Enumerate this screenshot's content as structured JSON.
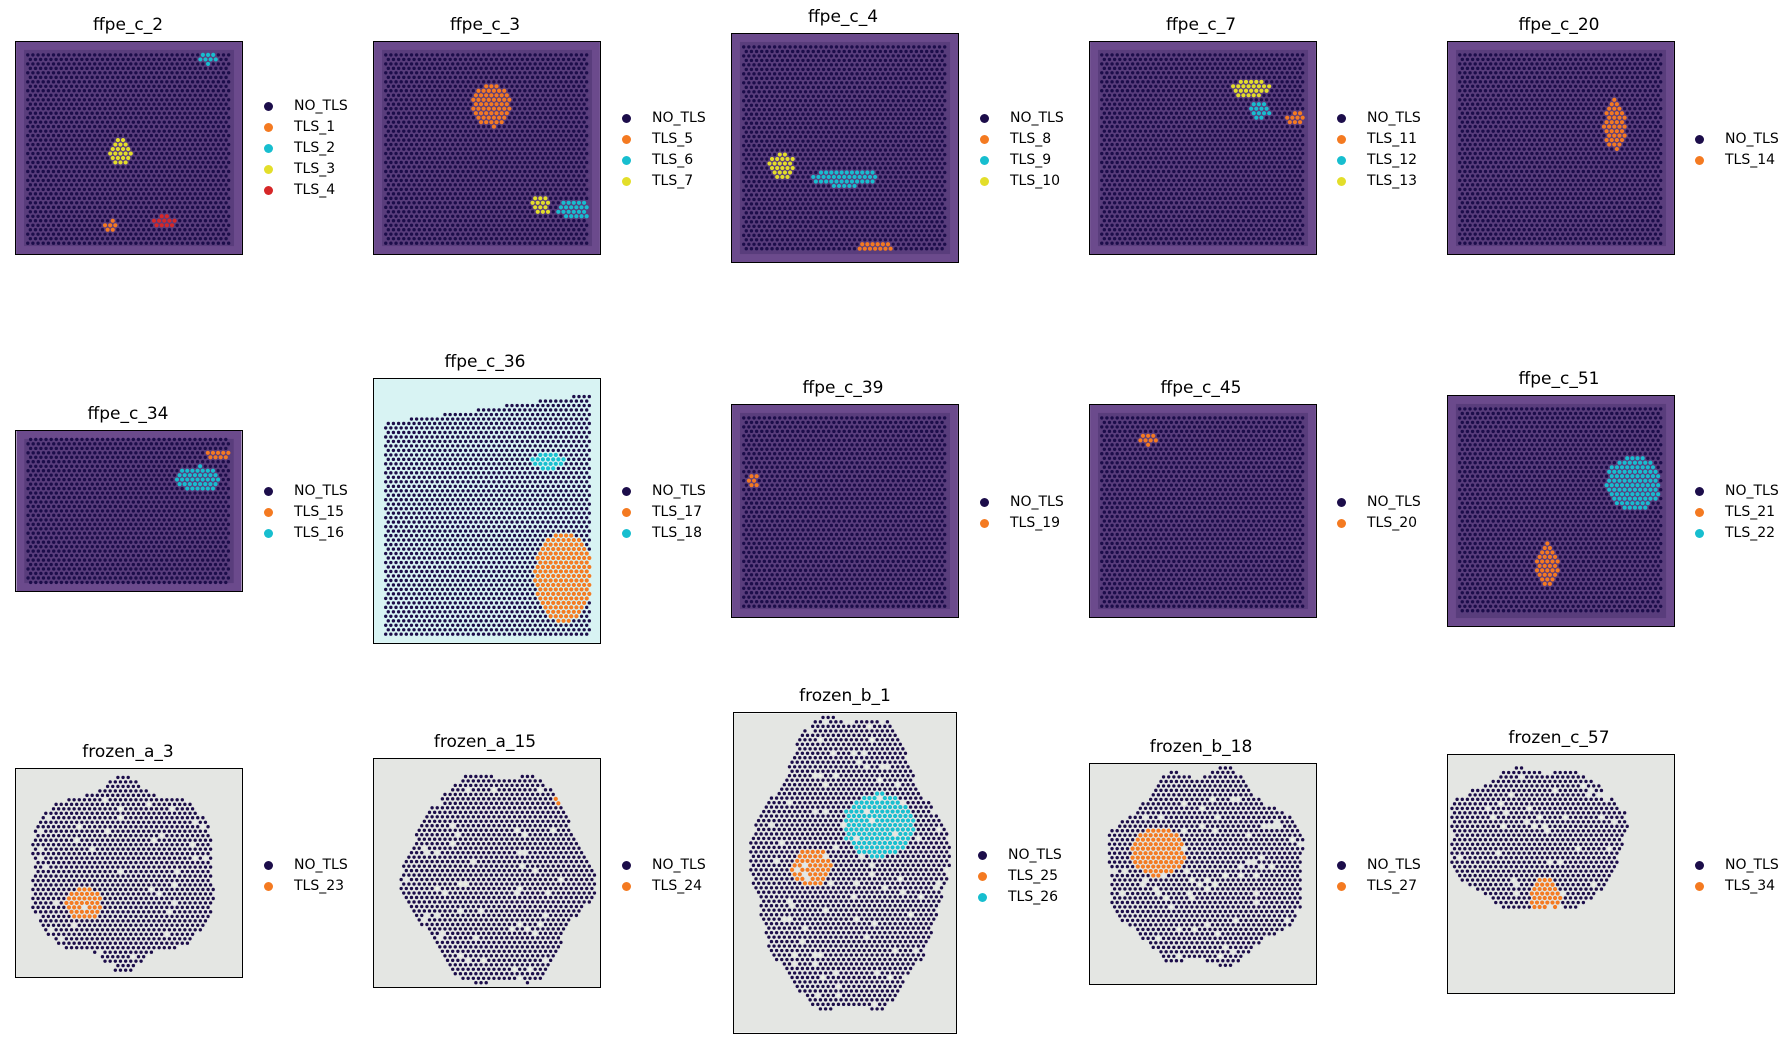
{
  "palette": {
    "NO_TLS": "#1c0d4a",
    "TLS_orange": "#f47a21",
    "TLS_cyan": "#17becf",
    "TLS_yellow": "#e3de2a",
    "TLS_red": "#d62728",
    "tissue_ffpe": "#6b4a8c",
    "tissue_frozen_bg": "#e4e6e3"
  },
  "panels": [
    {
      "title": "ffpe_c_2",
      "type": "ffpe",
      "legend": [
        {
          "label": "NO_TLS",
          "color": "#1c0d4a"
        },
        {
          "label": "TLS_1",
          "color": "#f47a21"
        },
        {
          "label": "TLS_2",
          "color": "#17becf"
        },
        {
          "label": "TLS_3",
          "color": "#e3de2a"
        },
        {
          "label": "TLS_4",
          "color": "#d62728"
        }
      ]
    },
    {
      "title": "ffpe_c_3",
      "type": "ffpe",
      "legend": [
        {
          "label": "NO_TLS",
          "color": "#1c0d4a"
        },
        {
          "label": "TLS_5",
          "color": "#f47a21"
        },
        {
          "label": "TLS_6",
          "color": "#17becf"
        },
        {
          "label": "TLS_7",
          "color": "#e3de2a"
        }
      ]
    },
    {
      "title": "ffpe_c_4",
      "type": "ffpe",
      "legend": [
        {
          "label": "NO_TLS",
          "color": "#1c0d4a"
        },
        {
          "label": "TLS_8",
          "color": "#f47a21"
        },
        {
          "label": "TLS_9",
          "color": "#17becf"
        },
        {
          "label": "TLS_10",
          "color": "#e3de2a"
        }
      ]
    },
    {
      "title": "ffpe_c_7",
      "type": "ffpe",
      "legend": [
        {
          "label": "NO_TLS",
          "color": "#1c0d4a"
        },
        {
          "label": "TLS_11",
          "color": "#f47a21"
        },
        {
          "label": "TLS_12",
          "color": "#17becf"
        },
        {
          "label": "TLS_13",
          "color": "#e3de2a"
        }
      ]
    },
    {
      "title": "ffpe_c_20",
      "type": "ffpe",
      "legend": [
        {
          "label": "NO_TLS",
          "color": "#1c0d4a"
        },
        {
          "label": "TLS_14",
          "color": "#f47a21"
        }
      ]
    },
    {
      "title": "ffpe_c_34",
      "type": "ffpe",
      "legend": [
        {
          "label": "NO_TLS",
          "color": "#1c0d4a"
        },
        {
          "label": "TLS_15",
          "color": "#f47a21"
        },
        {
          "label": "TLS_16",
          "color": "#17becf"
        }
      ]
    },
    {
      "title": "ffpe_c_36",
      "type": "ffpe36",
      "legend": [
        {
          "label": "NO_TLS",
          "color": "#1c0d4a"
        },
        {
          "label": "TLS_17",
          "color": "#f47a21"
        },
        {
          "label": "TLS_18",
          "color": "#17becf"
        }
      ]
    },
    {
      "title": "ffpe_c_39",
      "type": "ffpe",
      "legend": [
        {
          "label": "NO_TLS",
          "color": "#1c0d4a"
        },
        {
          "label": "TLS_19",
          "color": "#f47a21"
        }
      ]
    },
    {
      "title": "ffpe_c_45",
      "type": "ffpe",
      "legend": [
        {
          "label": "NO_TLS",
          "color": "#1c0d4a"
        },
        {
          "label": "TLS_20",
          "color": "#f47a21"
        }
      ]
    },
    {
      "title": "ffpe_c_51",
      "type": "ffpe",
      "legend": [
        {
          "label": "NO_TLS",
          "color": "#1c0d4a"
        },
        {
          "label": "TLS_21",
          "color": "#f47a21"
        },
        {
          "label": "TLS_22",
          "color": "#17becf"
        }
      ]
    },
    {
      "title": "frozen_a_3",
      "type": "frozen",
      "legend": [
        {
          "label": "NO_TLS",
          "color": "#1c0d4a"
        },
        {
          "label": "TLS_23",
          "color": "#f47a21"
        }
      ]
    },
    {
      "title": "frozen_a_15",
      "type": "frozen",
      "legend": [
        {
          "label": "NO_TLS",
          "color": "#1c0d4a"
        },
        {
          "label": "TLS_24",
          "color": "#f47a21"
        }
      ]
    },
    {
      "title": "frozen_b_1",
      "type": "frozen",
      "legend": [
        {
          "label": "NO_TLS",
          "color": "#1c0d4a"
        },
        {
          "label": "TLS_25",
          "color": "#f47a21"
        },
        {
          "label": "TLS_26",
          "color": "#17becf"
        }
      ]
    },
    {
      "title": "frozen_b_18",
      "type": "frozen",
      "legend": [
        {
          "label": "NO_TLS",
          "color": "#1c0d4a"
        },
        {
          "label": "TLS_27",
          "color": "#f47a21"
        }
      ]
    },
    {
      "title": "frozen_c_57",
      "type": "frozen",
      "legend": [
        {
          "label": "NO_TLS",
          "color": "#1c0d4a"
        },
        {
          "label": "TLS_34",
          "color": "#f47a21"
        }
      ]
    }
  ]
}
